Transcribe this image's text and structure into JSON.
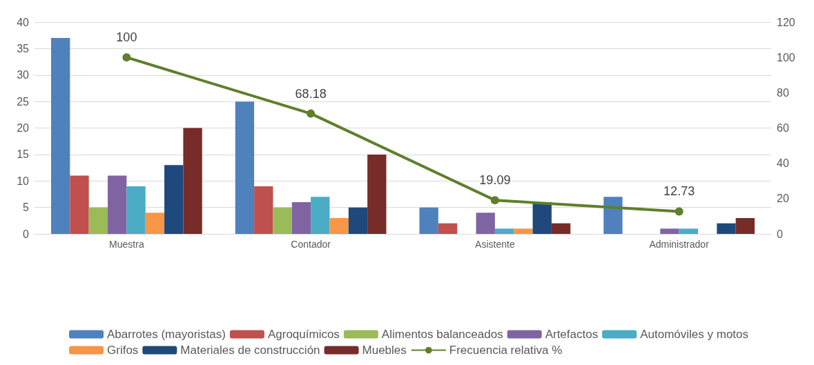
{
  "chart_data": {
    "type": "bar",
    "categories": [
      "Muestra",
      "Contador",
      "Asistente",
      "Administrador"
    ],
    "series": [
      {
        "name": "Abarrotes (mayoristas)",
        "color": "#4f81bd",
        "values": [
          37,
          25,
          5,
          7
        ]
      },
      {
        "name": "Agroquímicos",
        "color": "#c0504d",
        "values": [
          11,
          9,
          2,
          0
        ]
      },
      {
        "name": "Alimentos balanceados",
        "color": "#9bbb59",
        "values": [
          5,
          5,
          0,
          0
        ]
      },
      {
        "name": "Artefactos",
        "color": "#8064a2",
        "values": [
          11,
          6,
          4,
          1
        ]
      },
      {
        "name": "Automóviles y motos",
        "color": "#4bacc6",
        "values": [
          9,
          7,
          1,
          1
        ]
      },
      {
        "name": "Grifos",
        "color": "#f79646",
        "values": [
          4,
          3,
          1,
          0
        ]
      },
      {
        "name": "Materiales de construcción",
        "color": "#1f497d",
        "values": [
          13,
          5,
          6,
          2
        ]
      },
      {
        "name": "Muebles",
        "color": "#772c2a",
        "values": [
          20,
          15,
          2,
          3
        ]
      },
      {
        "name": "Frecuencia relativa %",
        "type": "line",
        "axis": "y2",
        "color": "#5f7f2c",
        "marker": "circle",
        "values": [
          100,
          68.18,
          19.09,
          12.73
        ],
        "value_labels": [
          "100",
          "68.18",
          "19.09",
          "12.73"
        ]
      }
    ],
    "ylim": [
      0,
      40
    ],
    "yticks": [
      0,
      5,
      10,
      15,
      20,
      25,
      30,
      35,
      40
    ],
    "y2lim": [
      0,
      120
    ],
    "y2ticks": [
      0,
      20,
      40,
      60,
      80,
      100,
      120
    ],
    "grid": "y",
    "legend": "bottom"
  }
}
